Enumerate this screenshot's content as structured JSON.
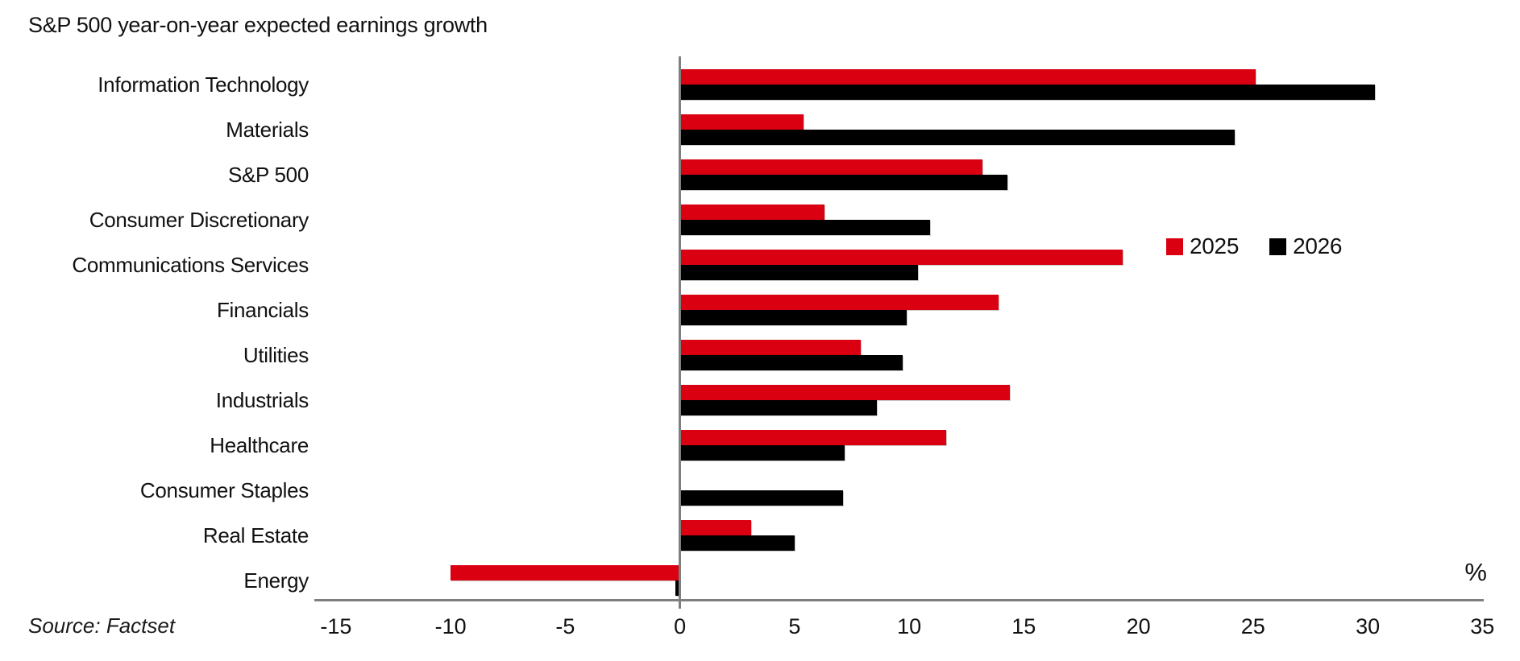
{
  "title": "S&P 500 year-on-year expected earnings growth",
  "source": "Source: Factset",
  "axis_unit_label": "%",
  "colors": {
    "accent_red": "#da0011",
    "series_black": "#000000",
    "axis_gray": "#7f7f7f",
    "text": "#111111"
  },
  "legend": {
    "entries": [
      {
        "label": "2025",
        "color": "#da0011"
      },
      {
        "label": "2026",
        "color": "#000000"
      }
    ]
  },
  "chart_data": {
    "type": "bar",
    "orientation": "horizontal",
    "title": "S&P 500 year-on-year expected earnings growth",
    "xlabel": "%",
    "ylabel": "",
    "xlim": [
      -15,
      35
    ],
    "xticks": [
      -15,
      -10,
      -5,
      0,
      5,
      10,
      15,
      20,
      25,
      30,
      35
    ],
    "grid": false,
    "legend_position": "middle-right",
    "categories": [
      "Information Technology",
      "Materials",
      "S&P 500",
      "Consumer Discretionary",
      "Communications Services",
      "Financials",
      "Utilities",
      "Industrials",
      "Healthcare",
      "Consumer Staples",
      "Real Estate",
      "Energy"
    ],
    "series": [
      {
        "name": "2025",
        "color": "#da0011",
        "values": [
          25.1,
          5.4,
          13.2,
          6.3,
          19.3,
          13.9,
          7.9,
          14.4,
          11.6,
          0,
          3.1,
          -10.0
        ]
      },
      {
        "name": "2026",
        "color": "#000000",
        "values": [
          30.3,
          24.2,
          14.3,
          10.9,
          10.4,
          9.9,
          9.7,
          8.6,
          7.2,
          7.1,
          5.0,
          -0.2
        ]
      }
    ]
  }
}
